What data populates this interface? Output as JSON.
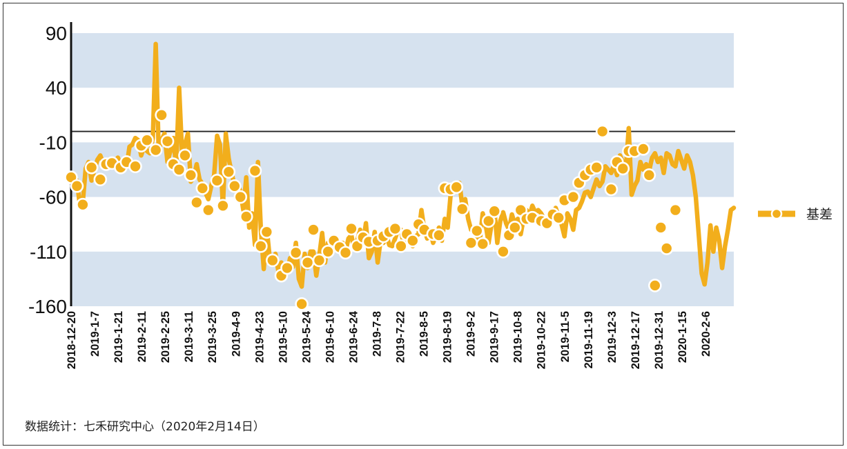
{
  "chart_data": {
    "type": "line",
    "title": "",
    "xlabel": "",
    "ylabel": "",
    "ylim": [
      -160,
      90
    ],
    "yticks": [
      90,
      40,
      -10,
      -60,
      -110,
      -160
    ],
    "zero_line": 0,
    "grid": "alternating horizontal bands",
    "legend_position": "right",
    "x_tick_labels": [
      "2018-12-20",
      "2019-1-7",
      "2019-1-21",
      "2019-2-11",
      "2019-2-25",
      "2019-3-11",
      "2019-3-25",
      "2019-4-9",
      "2019-4-23",
      "2019-5-10",
      "2019-5-24",
      "2019-6-10",
      "2019-6-24",
      "2019-7-8",
      "2019-7-22",
      "2019-8-5",
      "2019-8-19",
      "2019-9-2",
      "2019-9-17",
      "2019-10-8",
      "2019-10-22",
      "2019-11-5",
      "2019-11-19",
      "2019-12-3",
      "2019-12-17",
      "2019-12-31",
      "2020-1-15",
      "2020-2-6"
    ],
    "series": [
      {
        "name": "基差",
        "color": "#F2AE1C",
        "values": [
          -42,
          -50,
          -45,
          -68,
          -65,
          -34,
          -28,
          -45,
          -35,
          -26,
          -22,
          -29,
          -30,
          -26,
          -32,
          -28,
          -24,
          -30,
          -25,
          -32,
          -14,
          -12,
          -6,
          -8,
          -22,
          -14,
          -18,
          -20,
          -6,
          80,
          -18,
          -8,
          -2,
          -28,
          -18,
          -6,
          -32,
          40,
          -20,
          -12,
          -2,
          -46,
          -42,
          -30,
          -44,
          -48,
          -56,
          -62,
          -50,
          -40,
          -4,
          -12,
          -70,
          -2,
          -25,
          -38,
          -50,
          -48,
          -55,
          -72,
          -42,
          -88,
          -75,
          -104,
          -28,
          -90,
          -126,
          -88,
          -115,
          -118,
          -112,
          -128,
          -120,
          -132,
          -128,
          -116,
          -124,
          -102,
          -135,
          -142,
          -112,
          -125,
          -110,
          -110,
          -132,
          -114,
          -93,
          -120,
          -102,
          -105,
          -98,
          -100,
          -102,
          -102,
          -110,
          -98,
          -95,
          -108,
          -100,
          -90,
          -103,
          -84,
          -116,
          -110,
          -92,
          -120,
          -100,
          -102,
          -95,
          -104,
          -105,
          -98,
          -90,
          -90,
          -105,
          -100,
          -92,
          -105,
          -96,
          -94,
          -72,
          -90,
          -98,
          -90,
          -102,
          -96,
          -88,
          -100,
          -80,
          -88,
          -58,
          -48,
          -52,
          -47,
          -68,
          -62,
          -80,
          -90,
          -90,
          -98,
          -100,
          -75,
          -85,
          -102,
          -85,
          -72,
          -102,
          -82,
          -74,
          -84,
          -90,
          -76,
          -85,
          -80,
          -94,
          -80,
          -72,
          -78,
          -68,
          -74,
          -72,
          -75,
          -80,
          -84,
          -82,
          -78,
          -70,
          -78,
          -85,
          -96,
          -75,
          -80,
          -90,
          -72,
          -70,
          -64,
          -56,
          -55,
          -60,
          -52,
          -44,
          -50,
          -46,
          -32,
          -35,
          -38,
          -30,
          -40,
          -22,
          -28,
          -36,
          3,
          -58,
          -50,
          -45,
          -28,
          -35,
          -30,
          -36,
          -24,
          -20,
          -28,
          -24,
          -38,
          -20,
          -22,
          -30,
          -32,
          -18,
          -26,
          -34,
          -22,
          -28,
          -40,
          -60,
          -95,
          -130,
          -140,
          -120,
          -86,
          -110,
          -88,
          -100,
          -125,
          -105,
          -90,
          -72,
          -70
        ]
      }
    ],
    "markers": [
      {
        "i": 0,
        "v": -42
      },
      {
        "i": 2,
        "v": -50
      },
      {
        "i": 4,
        "v": -67
      },
      {
        "i": 7,
        "v": -33
      },
      {
        "i": 10,
        "v": -44
      },
      {
        "i": 12,
        "v": -30
      },
      {
        "i": 14,
        "v": -29
      },
      {
        "i": 17,
        "v": -33
      },
      {
        "i": 19,
        "v": -28
      },
      {
        "i": 22,
        "v": -32
      },
      {
        "i": 24,
        "v": -13
      },
      {
        "i": 26,
        "v": -8
      },
      {
        "i": 29,
        "v": -17
      },
      {
        "i": 31,
        "v": 15
      },
      {
        "i": 33,
        "v": -9
      },
      {
        "i": 35,
        "v": -30
      },
      {
        "i": 37,
        "v": -35
      },
      {
        "i": 39,
        "v": -22
      },
      {
        "i": 41,
        "v": -40
      },
      {
        "i": 43,
        "v": -65
      },
      {
        "i": 45,
        "v": -52
      },
      {
        "i": 47,
        "v": -72
      },
      {
        "i": 50,
        "v": -45
      },
      {
        "i": 52,
        "v": -68
      },
      {
        "i": 54,
        "v": -37
      },
      {
        "i": 56,
        "v": -50
      },
      {
        "i": 58,
        "v": -60
      },
      {
        "i": 60,
        "v": -78
      },
      {
        "i": 63,
        "v": -36
      },
      {
        "i": 65,
        "v": -105
      },
      {
        "i": 67,
        "v": -92
      },
      {
        "i": 69,
        "v": -118
      },
      {
        "i": 72,
        "v": -132
      },
      {
        "i": 74,
        "v": -125
      },
      {
        "i": 77,
        "v": -111
      },
      {
        "i": 79,
        "v": -158
      },
      {
        "i": 81,
        "v": -120
      },
      {
        "i": 83,
        "v": -90
      },
      {
        "i": 85,
        "v": -118
      },
      {
        "i": 88,
        "v": -110
      },
      {
        "i": 90,
        "v": -100
      },
      {
        "i": 92,
        "v": -106
      },
      {
        "i": 94,
        "v": -111
      },
      {
        "i": 96,
        "v": -89
      },
      {
        "i": 98,
        "v": -105
      },
      {
        "i": 100,
        "v": -97
      },
      {
        "i": 102,
        "v": -101
      },
      {
        "i": 105,
        "v": -100
      },
      {
        "i": 107,
        "v": -96
      },
      {
        "i": 109,
        "v": -92
      },
      {
        "i": 111,
        "v": -89
      },
      {
        "i": 113,
        "v": -105
      },
      {
        "i": 115,
        "v": -94
      },
      {
        "i": 117,
        "v": -100
      },
      {
        "i": 119,
        "v": -85
      },
      {
        "i": 121,
        "v": -90
      },
      {
        "i": 124,
        "v": -94
      },
      {
        "i": 126,
        "v": -95
      },
      {
        "i": 128,
        "v": -52
      },
      {
        "i": 130,
        "v": -53
      },
      {
        "i": 132,
        "v": -51
      },
      {
        "i": 134,
        "v": -71
      },
      {
        "i": 137,
        "v": -102
      },
      {
        "i": 139,
        "v": -91
      },
      {
        "i": 141,
        "v": -103
      },
      {
        "i": 143,
        "v": -82
      },
      {
        "i": 145,
        "v": -73
      },
      {
        "i": 148,
        "v": -110
      },
      {
        "i": 150,
        "v": -95
      },
      {
        "i": 152,
        "v": -88
      },
      {
        "i": 154,
        "v": -72
      },
      {
        "i": 156,
        "v": -80
      },
      {
        "i": 158,
        "v": -79
      },
      {
        "i": 161,
        "v": -82
      },
      {
        "i": 163,
        "v": -84
      },
      {
        "i": 165,
        "v": -76
      },
      {
        "i": 167,
        "v": -79
      },
      {
        "i": 169,
        "v": -63
      },
      {
        "i": 172,
        "v": -60
      },
      {
        "i": 174,
        "v": -47
      },
      {
        "i": 176,
        "v": -40
      },
      {
        "i": 178,
        "v": -35
      },
      {
        "i": 180,
        "v": -33
      },
      {
        "i": 182,
        "v": 0
      },
      {
        "i": 185,
        "v": -53
      },
      {
        "i": 187,
        "v": -28
      },
      {
        "i": 189,
        "v": -34
      },
      {
        "i": 191,
        "v": -18
      },
      {
        "i": 193,
        "v": -18
      },
      {
        "i": 196,
        "v": -16
      },
      {
        "i": 198,
        "v": -40
      },
      {
        "i": 200,
        "v": -141
      },
      {
        "i": 202,
        "v": -88
      },
      {
        "i": 204,
        "v": -107
      },
      {
        "i": 207,
        "v": -72
      }
    ]
  },
  "legend": {
    "label": "基差"
  },
  "footer": {
    "source": "数据统计：七禾研究中心（2020年2月14日）"
  }
}
